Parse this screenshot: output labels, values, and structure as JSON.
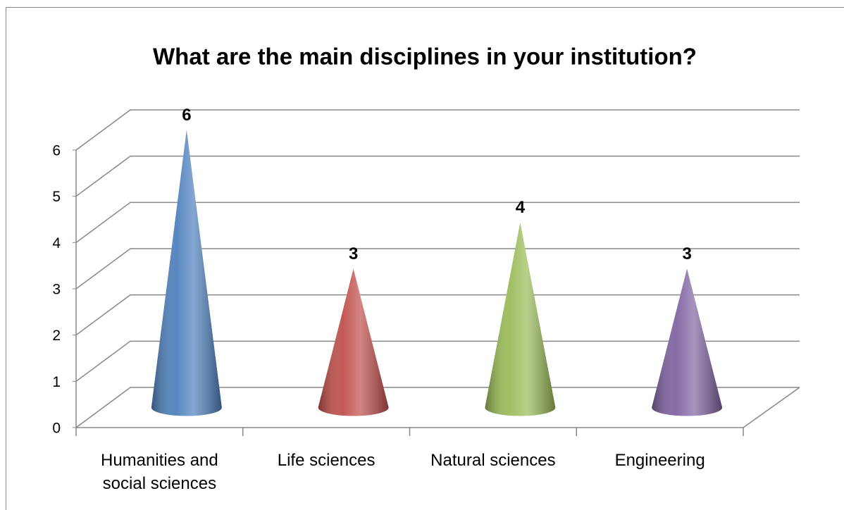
{
  "chart_data": {
    "type": "cone",
    "title": "What are the main disciplines in your institution?",
    "categories": [
      "Humanities and social sciences",
      "Life sciences",
      "Natural sciences",
      "Engineering"
    ],
    "values": [
      6,
      3,
      4,
      3
    ],
    "colors": [
      "#4f81bd",
      "#c0504d",
      "#9bbb59",
      "#8064a2"
    ],
    "ylim": [
      0,
      6
    ],
    "yticks": [
      0,
      1,
      2,
      3,
      4,
      5,
      6
    ],
    "grid": true
  }
}
